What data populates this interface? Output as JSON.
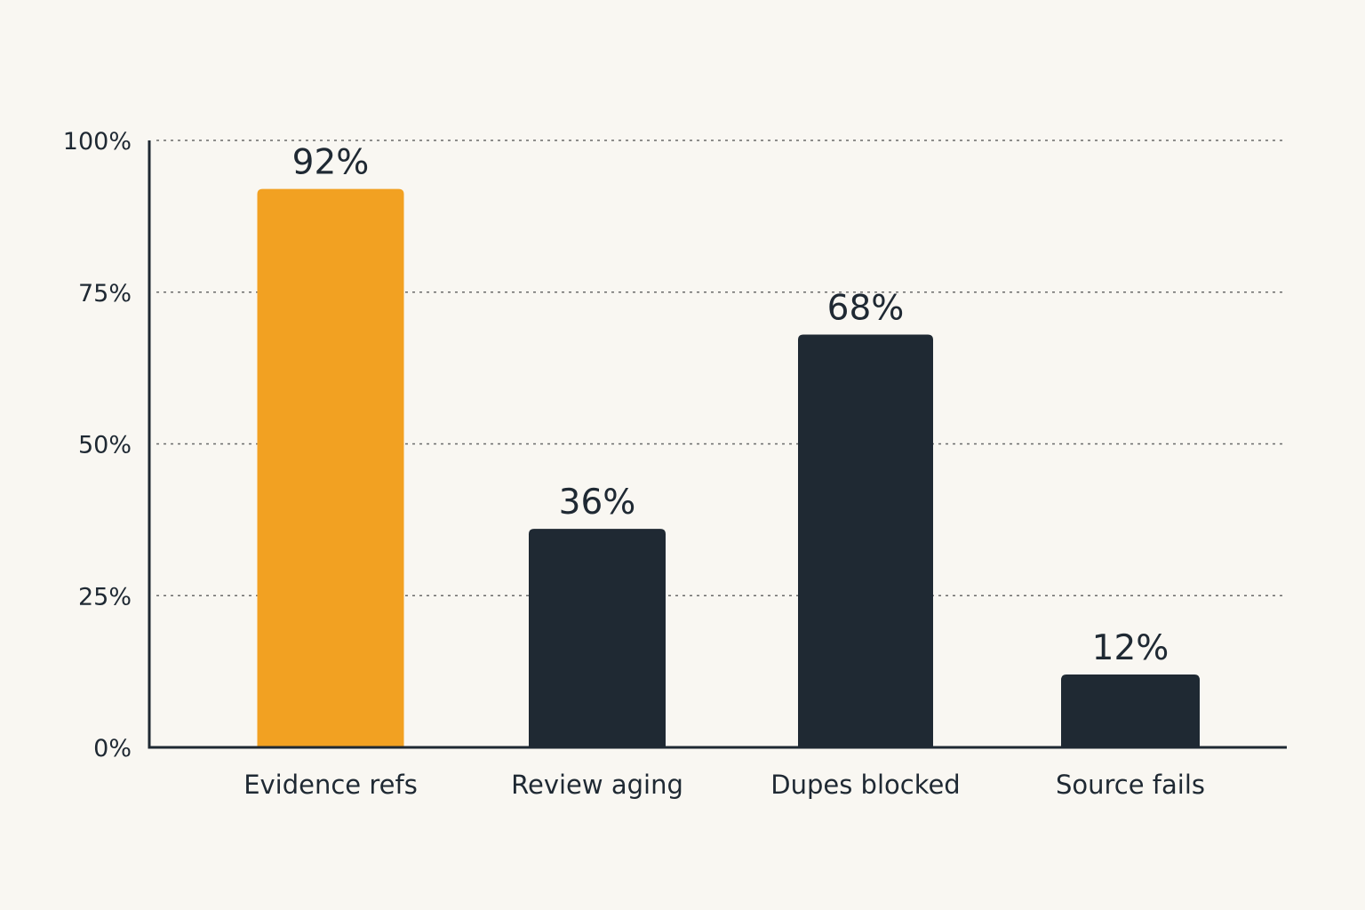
{
  "chart_data": {
    "type": "bar",
    "title": "",
    "xlabel": "",
    "ylabel": "",
    "categories": [
      "Evidence refs",
      "Review aging",
      "Dupes blocked",
      "Source fails"
    ],
    "values": [
      92,
      36,
      68,
      12
    ],
    "value_labels": [
      "92%",
      "36%",
      "68%",
      "12%"
    ],
    "highlight_index": 0,
    "ylim": [
      0,
      100
    ],
    "yticks": [
      0,
      25,
      50,
      75,
      100
    ],
    "ytick_labels": [
      "0%",
      "25%",
      "50%",
      "75%",
      "100%"
    ],
    "grid": true,
    "legend": "none",
    "colors": {
      "highlight": "#f2a122",
      "default": "#1f2933",
      "background": "#f9f7f2"
    }
  }
}
